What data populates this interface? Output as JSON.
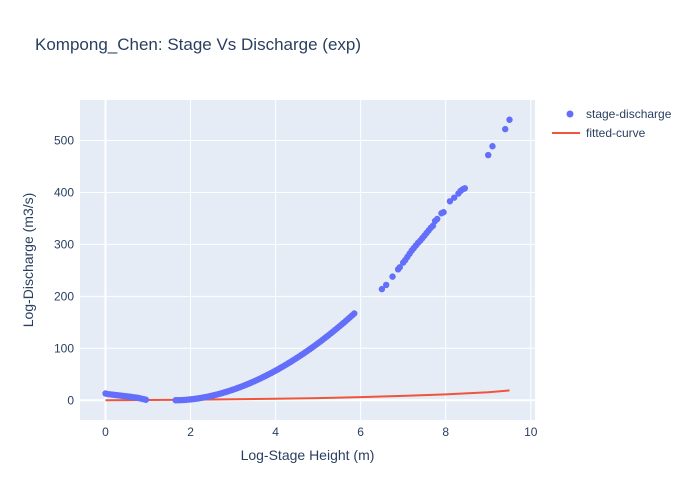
{
  "chart_data": {
    "type": "scatter",
    "title": "Kompong_Chen: Stage Vs Discharge (exp)",
    "xlabel": "Log-Stage Height (m)",
    "ylabel": "Log-Discharge (m3/s)",
    "xlim": [
      -0.6,
      10.1
    ],
    "ylim": [
      -38,
      578
    ],
    "xticks": [
      0,
      2,
      4,
      6,
      8,
      10
    ],
    "yticks": [
      0,
      100,
      200,
      300,
      400,
      500
    ],
    "grid": true,
    "legend_position": "top-right-outside",
    "colors": {
      "background": "#E5ECF6",
      "grid": "#ffffff",
      "scatter": "#636EFA",
      "curve": "#EF553B",
      "text": "#2a3f5f"
    },
    "series": [
      {
        "name": "stage-discharge",
        "mode": "markers",
        "segments": [
          {
            "x": [
              0.0,
              0.05,
              0.1,
              0.15,
              0.2,
              0.25,
              0.3,
              0.35,
              0.4,
              0.45,
              0.5,
              0.55,
              0.6,
              0.65,
              0.7,
              0.75,
              0.8,
              0.85,
              0.9,
              0.95
            ],
            "y": [
              13,
              12,
              11.5,
              11,
              10.5,
              10,
              9.5,
              9,
              8.5,
              8,
              7.5,
              7,
              6.5,
              6,
              5.5,
              5,
              4,
              3,
              2,
              1
            ]
          },
          {
            "x_range": [
              1.65,
              5.85
            ],
            "step": 0.05,
            "formula": "quadratic",
            "y_start": 0,
            "y_end": 167,
            "x_start": 1.65
          },
          {
            "x": [
              6.5,
              6.6,
              6.75,
              6.88,
              6.92,
              7.0,
              7.05,
              7.1,
              7.15,
              7.2,
              7.25,
              7.3,
              7.35,
              7.4,
              7.45,
              7.5,
              7.55,
              7.6,
              7.65,
              7.7,
              7.75,
              7.8,
              7.9,
              7.95,
              8.1,
              8.2,
              8.3,
              8.35,
              8.4,
              8.45,
              9.0,
              9.1,
              9.4,
              9.5
            ],
            "y": [
              214,
              222,
              238,
              252,
              256,
              265,
              270,
              276,
              282,
              288,
              293,
              298,
              303,
              307,
              312,
              317,
              322,
              327,
              332,
              336,
              345,
              349,
              360,
              362,
              383,
              390,
              398,
              403,
              406,
              408,
              472,
              489,
              522,
              540
            ]
          }
        ]
      },
      {
        "name": "fitted-curve",
        "mode": "lines",
        "x": [
          0,
          1,
          2,
          3,
          4,
          5,
          6,
          7,
          8,
          9,
          9.5
        ],
        "y": [
          0,
          0.5,
          1,
          1.8,
          2.8,
          4.2,
          6,
          8.3,
          11.3,
          15.3,
          19
        ]
      }
    ]
  }
}
